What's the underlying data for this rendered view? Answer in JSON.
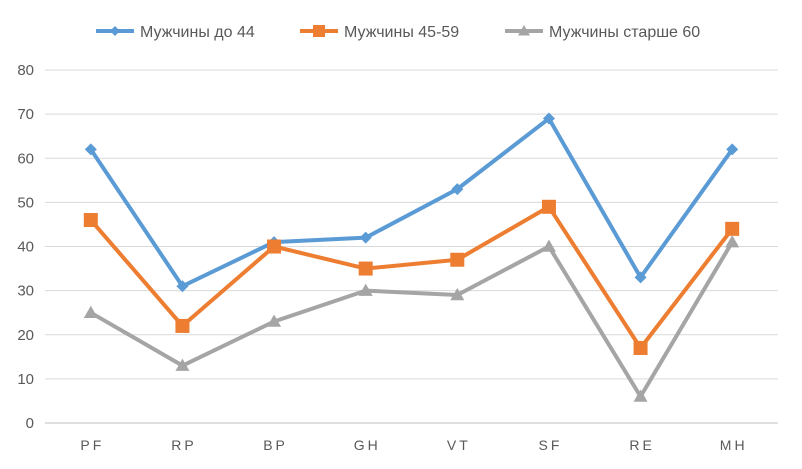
{
  "chart_data": {
    "type": "line",
    "title": "",
    "xlabel": "",
    "ylabel": "",
    "categories": [
      "PF",
      "RP",
      "BP",
      "GH",
      "VT",
      "SF",
      "RE",
      "MH"
    ],
    "ylim": [
      0,
      80
    ],
    "yticks": [
      0,
      10,
      20,
      30,
      40,
      50,
      60,
      70,
      80
    ],
    "grid": "horizontal",
    "legend": "top",
    "series": [
      {
        "name": "Мужчины до 44",
        "color": "#5B9BD5",
        "marker": "diamond",
        "values": [
          62,
          31,
          41,
          42,
          53,
          69,
          33,
          62
        ]
      },
      {
        "name": "Мужчины 45-59",
        "color": "#ED7D31",
        "marker": "square",
        "values": [
          46,
          22,
          40,
          35,
          37,
          49,
          17,
          44
        ]
      },
      {
        "name": "Мужчины старше 60",
        "color": "#A5A5A5",
        "marker": "triangle",
        "values": [
          25,
          13,
          23,
          30,
          29,
          40,
          6,
          41
        ]
      }
    ]
  }
}
